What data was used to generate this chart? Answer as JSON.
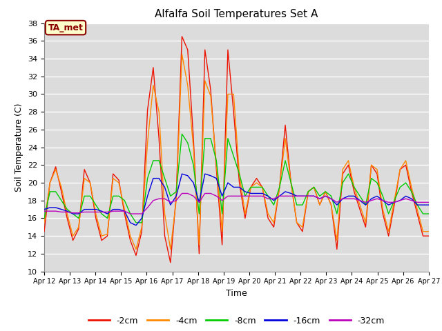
{
  "title": "Alfalfa Soil Temperatures Set A",
  "xlabel": "Time",
  "ylabel": "Soil Temperature (C)",
  "ylim": [
    10,
    38
  ],
  "yticks": [
    10,
    12,
    14,
    16,
    18,
    20,
    22,
    24,
    26,
    28,
    30,
    32,
    34,
    36,
    38
  ],
  "x_labels": [
    "Apr 12",
    "Apr 13",
    "Apr 14",
    "Apr 15",
    "Apr 16",
    "Apr 17",
    "Apr 18",
    "Apr 19",
    "Apr 20",
    "Apr 21",
    "Apr 22",
    "Apr 23",
    "Apr 24",
    "Apr 25",
    "Apr 26",
    "Apr 27"
  ],
  "annotation_text": "TA_met",
  "annotation_color": "#8B0000",
  "annotation_bg": "#FFFFCC",
  "line_colors": {
    "-2cm": "#EE1100",
    "-4cm": "#FF8800",
    "-8cm": "#00CC00",
    "-16cm": "#0000DD",
    "-32cm": "#BB00BB"
  },
  "legend_labels": [
    "-2cm",
    "-4cm",
    "-8cm",
    "-16cm",
    "-32cm"
  ],
  "figure_bg": "#D8D8D8",
  "plot_bg": "#DCDCDC",
  "grid_color": "#FFFFFF",
  "series": {
    "-2cm": [
      14.5,
      20.0,
      21.8,
      19.0,
      16.0,
      13.5,
      14.8,
      21.5,
      20.0,
      16.0,
      13.5,
      14.0,
      21.0,
      20.3,
      16.5,
      13.5,
      11.8,
      14.5,
      28.2,
      33.0,
      25.0,
      14.0,
      11.0,
      18.5,
      36.5,
      35.0,
      25.0,
      12.0,
      35.0,
      30.5,
      21.5,
      13.0,
      35.0,
      28.0,
      20.0,
      16.0,
      19.5,
      20.5,
      19.5,
      16.0,
      15.0,
      19.5,
      26.5,
      20.0,
      15.5,
      14.5,
      19.0,
      19.5,
      17.5,
      19.0,
      17.5,
      12.5,
      21.0,
      22.0,
      19.0,
      17.0,
      15.0,
      22.0,
      21.0,
      16.5,
      14.0,
      17.5,
      21.5,
      22.0,
      19.0,
      16.5,
      14.0,
      14.0
    ],
    "-4cm": [
      15.5,
      20.0,
      21.5,
      19.5,
      16.5,
      14.0,
      15.0,
      20.5,
      20.0,
      16.5,
      14.0,
      14.2,
      20.5,
      20.0,
      17.0,
      14.0,
      12.5,
      15.0,
      24.5,
      31.0,
      28.0,
      16.5,
      12.5,
      18.0,
      34.5,
      31.0,
      24.0,
      13.0,
      31.5,
      29.8,
      22.0,
      14.5,
      30.0,
      30.0,
      21.0,
      16.5,
      19.5,
      20.0,
      19.5,
      16.5,
      15.5,
      19.5,
      25.0,
      20.0,
      15.5,
      15.0,
      19.0,
      19.5,
      17.5,
      19.0,
      17.5,
      13.5,
      21.5,
      22.5,
      19.5,
      17.5,
      15.5,
      22.0,
      21.5,
      17.0,
      14.5,
      18.0,
      21.5,
      22.5,
      19.5,
      17.0,
      14.5,
      14.5
    ],
    "-8cm": [
      16.0,
      19.0,
      19.0,
      18.0,
      17.0,
      16.5,
      16.0,
      18.5,
      18.5,
      17.5,
      16.5,
      16.0,
      18.5,
      18.5,
      18.0,
      16.5,
      15.5,
      15.5,
      20.5,
      22.5,
      22.5,
      20.5,
      18.5,
      19.0,
      25.5,
      24.5,
      22.0,
      16.5,
      25.0,
      25.0,
      22.5,
      16.5,
      25.0,
      23.0,
      21.0,
      18.5,
      19.5,
      19.5,
      19.5,
      18.5,
      17.5,
      19.5,
      22.5,
      20.0,
      17.5,
      17.5,
      19.0,
      19.5,
      18.5,
      19.0,
      18.5,
      16.5,
      20.0,
      21.0,
      19.5,
      18.5,
      17.5,
      20.5,
      20.0,
      18.5,
      16.5,
      18.0,
      19.5,
      20.0,
      19.0,
      17.5,
      16.5,
      16.5
    ],
    "-16cm": [
      17.0,
      17.2,
      17.2,
      17.0,
      16.8,
      16.5,
      16.5,
      17.0,
      17.0,
      17.0,
      16.8,
      16.5,
      17.0,
      17.0,
      16.8,
      15.5,
      15.2,
      16.0,
      18.5,
      20.5,
      20.5,
      19.5,
      17.5,
      18.5,
      21.0,
      20.8,
      20.0,
      17.8,
      21.0,
      20.8,
      20.5,
      18.5,
      20.0,
      19.5,
      19.5,
      19.0,
      18.8,
      18.8,
      18.8,
      18.5,
      18.0,
      18.5,
      19.0,
      18.8,
      18.5,
      18.5,
      18.5,
      18.5,
      18.2,
      18.5,
      18.2,
      17.5,
      18.2,
      18.5,
      18.5,
      18.0,
      17.5,
      18.2,
      18.5,
      18.0,
      17.5,
      17.8,
      18.0,
      18.5,
      18.2,
      17.5,
      17.5,
      17.5
    ],
    "-32cm": [
      16.8,
      16.8,
      16.8,
      16.7,
      16.7,
      16.6,
      16.6,
      16.7,
      16.7,
      16.7,
      16.7,
      16.7,
      16.8,
      16.8,
      16.8,
      16.5,
      16.5,
      16.5,
      17.2,
      18.0,
      18.2,
      18.2,
      17.8,
      18.0,
      18.8,
      18.8,
      18.5,
      17.8,
      18.8,
      18.8,
      18.5,
      18.0,
      18.5,
      18.5,
      18.5,
      18.5,
      18.5,
      18.5,
      18.5,
      18.2,
      18.2,
      18.5,
      18.5,
      18.5,
      18.5,
      18.5,
      18.5,
      18.5,
      18.2,
      18.5,
      18.2,
      17.8,
      18.2,
      18.2,
      18.2,
      18.0,
      17.8,
      18.0,
      18.2,
      18.0,
      17.8,
      17.8,
      18.0,
      18.2,
      18.0,
      17.8,
      17.8,
      17.8
    ]
  }
}
